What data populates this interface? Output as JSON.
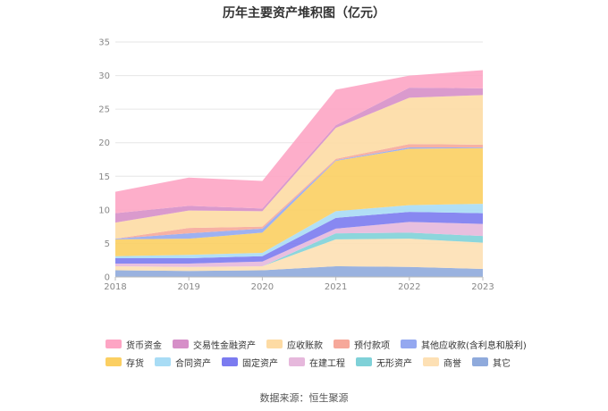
{
  "chart_data": {
    "type": "area",
    "stacked": true,
    "title": "历年主要资产堆积图（亿元）",
    "x": [
      "2018",
      "2019",
      "2020",
      "2021",
      "2022",
      "2023"
    ],
    "ylim": [
      0,
      35
    ],
    "yticks": [
      0,
      5,
      10,
      15,
      20,
      25,
      30,
      35
    ],
    "grid": true,
    "legend_position": "bottom",
    "series": [
      {
        "name": "其它",
        "color": "#8faadc",
        "values": [
          1.0,
          0.9,
          1.0,
          1.6,
          1.5,
          1.2
        ]
      },
      {
        "name": "商誉",
        "color": "#fde0b4",
        "values": [
          0.6,
          0.6,
          0.6,
          4.0,
          4.2,
          3.9
        ]
      },
      {
        "name": "无形资产",
        "color": "#7fd1d8",
        "values": [
          0.0,
          0.0,
          0.0,
          0.9,
          0.9,
          1.0
        ]
      },
      {
        "name": "在建工程",
        "color": "#e6b8dc",
        "values": [
          0.4,
          0.5,
          0.7,
          0.7,
          1.6,
          1.8
        ]
      },
      {
        "name": "固定资产",
        "color": "#7b7bf0",
        "values": [
          0.8,
          0.8,
          0.8,
          1.6,
          1.5,
          1.6
        ]
      },
      {
        "name": "合同资产",
        "color": "#a8dcf5",
        "values": [
          0.3,
          0.5,
          0.5,
          1.0,
          1.0,
          1.4
        ]
      },
      {
        "name": "存货",
        "color": "#fbcf62",
        "values": [
          2.5,
          2.4,
          3.0,
          7.5,
          8.4,
          8.3
        ]
      },
      {
        "name": "其他应收款(含利息和股利)",
        "color": "#94a8f0",
        "values": [
          0.1,
          0.8,
          0.6,
          0.1,
          0.2,
          0.1
        ]
      },
      {
        "name": "预付款项",
        "color": "#f6a89a",
        "values": [
          0.0,
          0.8,
          0.3,
          0.2,
          0.5,
          0.4
        ]
      },
      {
        "name": "应收账款",
        "color": "#fddba4",
        "values": [
          2.4,
          2.6,
          2.3,
          4.6,
          6.9,
          7.4
        ]
      },
      {
        "name": "交易性金融资产",
        "color": "#d68fc8",
        "values": [
          1.4,
          0.7,
          0.4,
          0.4,
          1.5,
          1.0
        ]
      },
      {
        "name": "货币资金",
        "color": "#fda5c4",
        "values": [
          3.2,
          4.2,
          4.1,
          5.3,
          1.8,
          2.7
        ]
      }
    ],
    "legend_rows": [
      [
        "货币资金",
        "交易性金融资产",
        "应收账款",
        "预付款项",
        "其他应收款(含利息和股利)"
      ],
      [
        "存货",
        "合同资产",
        "固定资产",
        "在建工程",
        "无形资产",
        "商誉",
        "其它"
      ]
    ]
  },
  "footer": {
    "source": "数据来源：恒生聚源"
  }
}
